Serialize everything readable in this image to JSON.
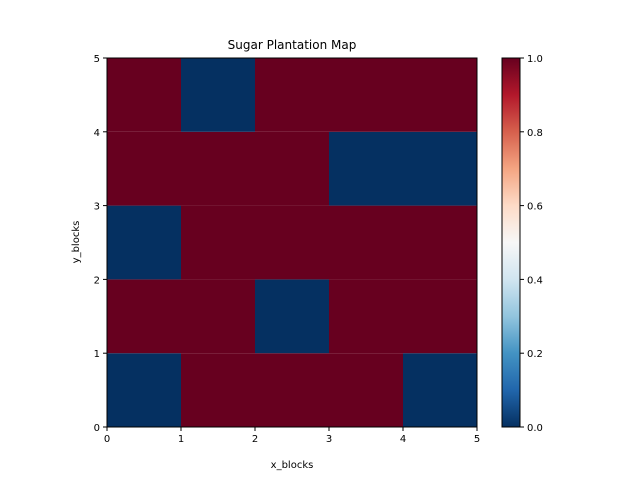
{
  "chart_data": {
    "type": "heatmap",
    "title": "Sugar Plantation Map",
    "xlabel": "x_blocks",
    "ylabel": "y_blocks",
    "xlim": [
      0,
      5
    ],
    "ylim": [
      0,
      5
    ],
    "x_ticks": [
      "0",
      "1",
      "2",
      "3",
      "4",
      "5"
    ],
    "y_ticks": [
      "0",
      "1",
      "2",
      "3",
      "4",
      "5"
    ],
    "colormap": "RdBu_r",
    "colorbar": {
      "range": [
        0.0,
        1.0
      ],
      "ticks": [
        "0.0",
        "0.2",
        "0.4",
        "0.6",
        "0.8",
        "1.0"
      ],
      "tick_values": [
        0.0,
        0.2,
        0.4,
        0.6,
        0.8,
        1.0
      ]
    },
    "rows_bottom_to_top": [
      [
        0,
        1,
        1,
        1,
        0
      ],
      [
        1,
        1,
        0,
        1,
        1
      ],
      [
        0,
        1,
        1,
        1,
        1
      ],
      [
        1,
        1,
        1,
        0,
        0
      ],
      [
        1,
        0,
        1,
        1,
        1
      ]
    ],
    "colors": {
      "low": "#053061",
      "high": "#67001f"
    },
    "grid": false
  }
}
